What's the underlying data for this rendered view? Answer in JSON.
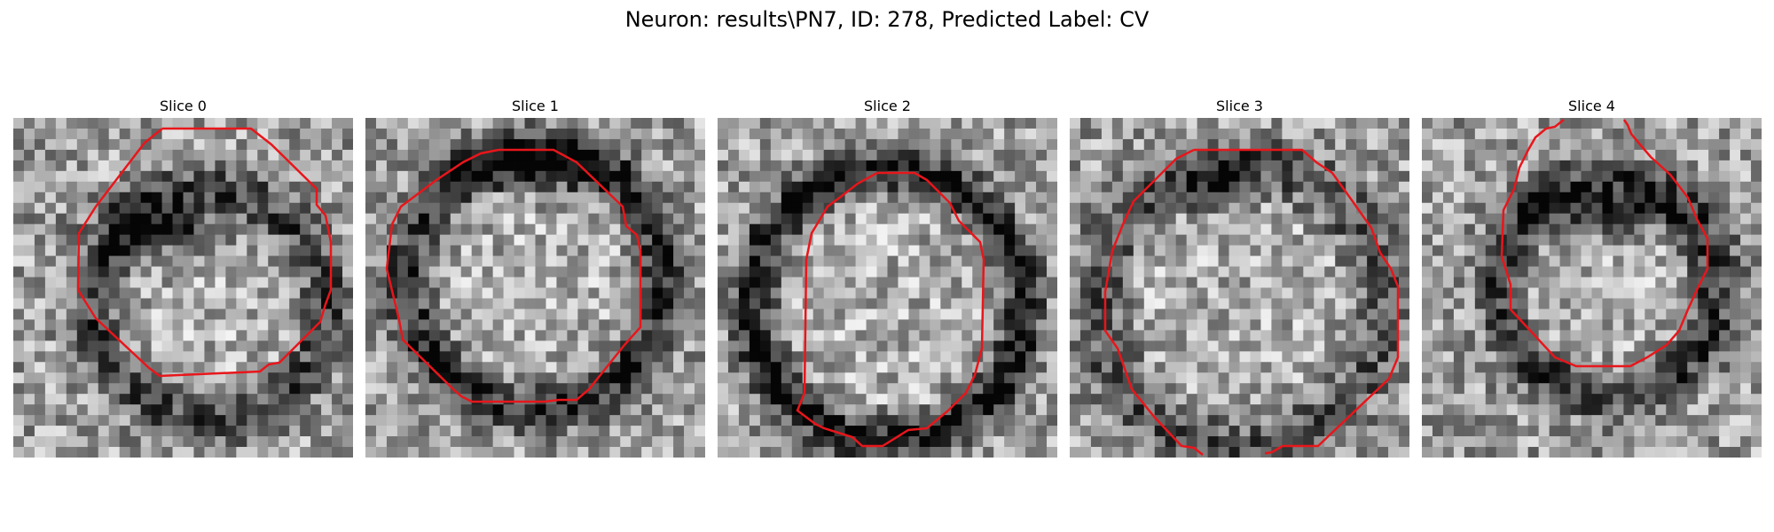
{
  "figure": {
    "title": "Neuron: results\\PN7, ID: 278, Predicted Label: CV"
  },
  "panels": [
    {
      "title": "Slice 0"
    },
    {
      "title": "Slice 1"
    },
    {
      "title": "Slice 2"
    },
    {
      "title": "Slice 3"
    },
    {
      "title": "Slice 4"
    }
  ],
  "colors": {
    "contour": "#e8161b"
  }
}
